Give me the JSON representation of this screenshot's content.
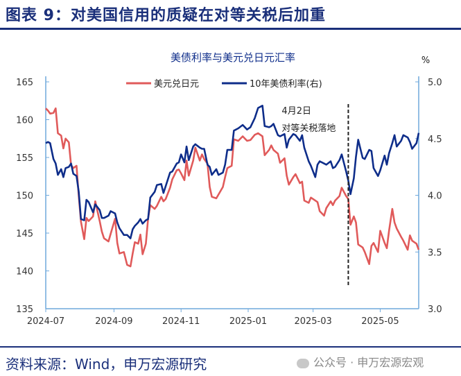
{
  "figure_title": "图表 9：对美国信用的质疑在对等关税后加重",
  "source": "资料来源：Wind，申万宏源研究",
  "watermark": "公众号 · 申万宏源宏观",
  "chart_data": {
    "type": "line",
    "title": "美债利率与美元兑日元汇率",
    "right_unit": "%",
    "x_ticks": [
      "2024-07",
      "2024-09",
      "2024-11",
      "2025-01",
      "2025-03",
      "2025-05"
    ],
    "x_range": [
      "2024-07-01",
      "2025-06-05"
    ],
    "y_left": {
      "min": 135,
      "max": 165,
      "ticks": [
        135,
        140,
        145,
        150,
        155,
        160,
        165
      ]
    },
    "y_right": {
      "min": 3.0,
      "max": 5.0,
      "ticks": [
        "3.0",
        "3.5",
        "4.0",
        "4.5",
        "5.0"
      ]
    },
    "annotation": {
      "date": "2025-04-02",
      "line1": "4月2日",
      "line2": "对等关税落地"
    },
    "legend": "top",
    "colors": {
      "usdjpy": "#e05a5a",
      "ust10y": "#0e2d8a",
      "axis": "#6fa8dc",
      "annotation": "#222222"
    },
    "series": [
      {
        "name": "美元兑日元",
        "axis": "left",
        "color": "#e05a5a",
        "points": [
          [
            "2024-07-01",
            161.5
          ],
          [
            "2024-07-03",
            161.2
          ],
          [
            "2024-07-05",
            160.8
          ],
          [
            "2024-07-08",
            160.9
          ],
          [
            "2024-07-10",
            161.5
          ],
          [
            "2024-07-12",
            158.2
          ],
          [
            "2024-07-15",
            157.9
          ],
          [
            "2024-07-17",
            156.2
          ],
          [
            "2024-07-19",
            157.5
          ],
          [
            "2024-07-22",
            157.0
          ],
          [
            "2024-07-24",
            154.0
          ],
          [
            "2024-07-26",
            153.6
          ],
          [
            "2024-07-29",
            153.9
          ],
          [
            "2024-07-31",
            149.9
          ],
          [
            "2024-08-02",
            146.5
          ],
          [
            "2024-08-05",
            144.2
          ],
          [
            "2024-08-07",
            147.0
          ],
          [
            "2024-08-09",
            146.6
          ],
          [
            "2024-08-13",
            147.2
          ],
          [
            "2024-08-15",
            149.2
          ],
          [
            "2024-08-19",
            146.6
          ],
          [
            "2024-08-21",
            145.2
          ],
          [
            "2024-08-23",
            144.3
          ],
          [
            "2024-08-27",
            143.9
          ],
          [
            "2024-08-29",
            144.9
          ],
          [
            "2024-09-02",
            146.9
          ],
          [
            "2024-09-04",
            143.7
          ],
          [
            "2024-09-06",
            142.3
          ],
          [
            "2024-09-10",
            142.5
          ],
          [
            "2024-09-13",
            140.8
          ],
          [
            "2024-09-16",
            140.6
          ],
          [
            "2024-09-18",
            142.3
          ],
          [
            "2024-09-20",
            143.8
          ],
          [
            "2024-09-23",
            143.6
          ],
          [
            "2024-09-25",
            144.8
          ],
          [
            "2024-09-27",
            142.2
          ],
          [
            "2024-09-30",
            143.6
          ],
          [
            "2024-10-02",
            146.9
          ],
          [
            "2024-10-04",
            148.7
          ],
          [
            "2024-10-08",
            148.2
          ],
          [
            "2024-10-10",
            148.6
          ],
          [
            "2024-10-14",
            149.8
          ],
          [
            "2024-10-16",
            149.2
          ],
          [
            "2024-10-18",
            149.5
          ],
          [
            "2024-10-22",
            151.0
          ],
          [
            "2024-10-24",
            152.1
          ],
          [
            "2024-10-28",
            153.3
          ],
          [
            "2024-10-30",
            153.4
          ],
          [
            "2024-11-01",
            152.9
          ],
          [
            "2024-11-04",
            152.0
          ],
          [
            "2024-11-06",
            154.6
          ],
          [
            "2024-11-08",
            152.6
          ],
          [
            "2024-11-12",
            154.6
          ],
          [
            "2024-11-14",
            156.3
          ],
          [
            "2024-11-18",
            154.6
          ],
          [
            "2024-11-20",
            155.4
          ],
          [
            "2024-11-22",
            154.8
          ],
          [
            "2024-11-25",
            154.2
          ],
          [
            "2024-11-27",
            151.1
          ],
          [
            "2024-11-29",
            149.8
          ],
          [
            "2024-12-03",
            149.6
          ],
          [
            "2024-12-05",
            150.1
          ],
          [
            "2024-12-09",
            151.1
          ],
          [
            "2024-12-11",
            152.4
          ],
          [
            "2024-12-13",
            153.6
          ],
          [
            "2024-12-17",
            153.9
          ],
          [
            "2024-12-19",
            157.4
          ],
          [
            "2024-12-23",
            157.2
          ],
          [
            "2024-12-27",
            157.8
          ],
          [
            "2024-12-31",
            157.2
          ],
          [
            "2025-01-03",
            157.3
          ],
          [
            "2025-01-07",
            158.0
          ],
          [
            "2025-01-10",
            158.2
          ],
          [
            "2025-01-14",
            157.8
          ],
          [
            "2025-01-16",
            155.3
          ],
          [
            "2025-01-20",
            156.0
          ],
          [
            "2025-01-22",
            156.6
          ],
          [
            "2025-01-24",
            156.0
          ],
          [
            "2025-01-28",
            155.5
          ],
          [
            "2025-01-30",
            154.3
          ],
          [
            "2025-02-03",
            154.9
          ],
          [
            "2025-02-05",
            152.6
          ],
          [
            "2025-02-07",
            151.4
          ],
          [
            "2025-02-11",
            152.4
          ],
          [
            "2025-02-13",
            152.8
          ],
          [
            "2025-02-17",
            151.6
          ],
          [
            "2025-02-19",
            151.8
          ],
          [
            "2025-02-21",
            149.3
          ],
          [
            "2025-02-25",
            149.0
          ],
          [
            "2025-02-27",
            149.7
          ],
          [
            "2025-03-03",
            149.3
          ],
          [
            "2025-03-05",
            149.1
          ],
          [
            "2025-03-07",
            147.9
          ],
          [
            "2025-03-11",
            147.3
          ],
          [
            "2025-03-13",
            148.3
          ],
          [
            "2025-03-17",
            149.2
          ],
          [
            "2025-03-19",
            148.7
          ],
          [
            "2025-03-21",
            149.3
          ],
          [
            "2025-03-25",
            149.9
          ],
          [
            "2025-03-27",
            151.0
          ],
          [
            "2025-03-31",
            149.9
          ],
          [
            "2025-04-02",
            149.5
          ],
          [
            "2025-04-04",
            146.1
          ],
          [
            "2025-04-07",
            147.2
          ],
          [
            "2025-04-09",
            146.4
          ],
          [
            "2025-04-11",
            143.5
          ],
          [
            "2025-04-15",
            143.1
          ],
          [
            "2025-04-17",
            142.5
          ],
          [
            "2025-04-21",
            140.9
          ],
          [
            "2025-04-23",
            143.3
          ],
          [
            "2025-04-25",
            143.7
          ],
          [
            "2025-04-29",
            142.5
          ],
          [
            "2025-05-01",
            145.3
          ],
          [
            "2025-05-05",
            143.7
          ],
          [
            "2025-05-07",
            143.0
          ],
          [
            "2025-05-09",
            145.3
          ],
          [
            "2025-05-12",
            148.2
          ],
          [
            "2025-05-14",
            146.4
          ],
          [
            "2025-05-16",
            145.6
          ],
          [
            "2025-05-20",
            144.5
          ],
          [
            "2025-05-22",
            144.0
          ],
          [
            "2025-05-26",
            142.8
          ],
          [
            "2025-05-28",
            144.7
          ],
          [
            "2025-05-30",
            144.0
          ],
          [
            "2025-06-03",
            143.6
          ],
          [
            "2025-06-05",
            142.8
          ]
        ]
      },
      {
        "name": "10年美债利率(右)",
        "axis": "right",
        "color": "#0e2d8a",
        "points": [
          [
            "2024-07-01",
            4.46
          ],
          [
            "2024-07-03",
            4.47
          ],
          [
            "2024-07-05",
            4.46
          ],
          [
            "2024-07-08",
            4.32
          ],
          [
            "2024-07-10",
            4.28
          ],
          [
            "2024-07-12",
            4.18
          ],
          [
            "2024-07-15",
            4.23
          ],
          [
            "2024-07-17",
            4.16
          ],
          [
            "2024-07-19",
            4.24
          ],
          [
            "2024-07-22",
            4.25
          ],
          [
            "2024-07-24",
            4.28
          ],
          [
            "2024-07-26",
            4.19
          ],
          [
            "2024-07-29",
            4.17
          ],
          [
            "2024-07-31",
            4.03
          ],
          [
            "2024-08-02",
            3.79
          ],
          [
            "2024-08-05",
            3.78
          ],
          [
            "2024-08-07",
            3.96
          ],
          [
            "2024-08-09",
            3.94
          ],
          [
            "2024-08-13",
            3.85
          ],
          [
            "2024-08-15",
            3.92
          ],
          [
            "2024-08-19",
            3.87
          ],
          [
            "2024-08-21",
            3.8
          ],
          [
            "2024-08-23",
            3.8
          ],
          [
            "2024-08-27",
            3.82
          ],
          [
            "2024-08-29",
            3.86
          ],
          [
            "2024-09-02",
            3.84
          ],
          [
            "2024-09-04",
            3.76
          ],
          [
            "2024-09-06",
            3.71
          ],
          [
            "2024-09-10",
            3.65
          ],
          [
            "2024-09-13",
            3.65
          ],
          [
            "2024-09-16",
            3.62
          ],
          [
            "2024-09-18",
            3.7
          ],
          [
            "2024-09-20",
            3.73
          ],
          [
            "2024-09-23",
            3.76
          ],
          [
            "2024-09-25",
            3.79
          ],
          [
            "2024-09-27",
            3.75
          ],
          [
            "2024-09-30",
            3.78
          ],
          [
            "2024-10-02",
            3.79
          ],
          [
            "2024-10-04",
            3.98
          ],
          [
            "2024-10-08",
            4.03
          ],
          [
            "2024-10-10",
            4.09
          ],
          [
            "2024-10-14",
            4.1
          ],
          [
            "2024-10-16",
            4.02
          ],
          [
            "2024-10-18",
            4.08
          ],
          [
            "2024-10-22",
            4.2
          ],
          [
            "2024-10-24",
            4.21
          ],
          [
            "2024-10-28",
            4.28
          ],
          [
            "2024-10-30",
            4.29
          ],
          [
            "2024-11-01",
            4.36
          ],
          [
            "2024-11-04",
            4.29
          ],
          [
            "2024-11-06",
            4.43
          ],
          [
            "2024-11-08",
            4.31
          ],
          [
            "2024-11-12",
            4.43
          ],
          [
            "2024-11-14",
            4.45
          ],
          [
            "2024-11-18",
            4.42
          ],
          [
            "2024-11-20",
            4.41
          ],
          [
            "2024-11-22",
            4.41
          ],
          [
            "2024-11-25",
            4.27
          ],
          [
            "2024-11-27",
            4.25
          ],
          [
            "2024-11-29",
            4.18
          ],
          [
            "2024-12-03",
            4.23
          ],
          [
            "2024-12-05",
            4.18
          ],
          [
            "2024-12-09",
            4.2
          ],
          [
            "2024-12-11",
            4.27
          ],
          [
            "2024-12-13",
            4.4
          ],
          [
            "2024-12-17",
            4.4
          ],
          [
            "2024-12-19",
            4.57
          ],
          [
            "2024-12-23",
            4.59
          ],
          [
            "2024-12-27",
            4.62
          ],
          [
            "2024-12-31",
            4.58
          ],
          [
            "2025-01-03",
            4.6
          ],
          [
            "2025-01-07",
            4.68
          ],
          [
            "2025-01-10",
            4.77
          ],
          [
            "2025-01-14",
            4.79
          ],
          [
            "2025-01-16",
            4.61
          ],
          [
            "2025-01-20",
            4.6
          ],
          [
            "2025-01-22",
            4.61
          ],
          [
            "2025-01-24",
            4.63
          ],
          [
            "2025-01-28",
            4.53
          ],
          [
            "2025-01-30",
            4.52
          ],
          [
            "2025-02-03",
            4.54
          ],
          [
            "2025-02-05",
            4.42
          ],
          [
            "2025-02-07",
            4.49
          ],
          [
            "2025-02-11",
            4.54
          ],
          [
            "2025-02-13",
            4.53
          ],
          [
            "2025-02-17",
            4.48
          ],
          [
            "2025-02-19",
            4.53
          ],
          [
            "2025-02-21",
            4.42
          ],
          [
            "2025-02-25",
            4.3
          ],
          [
            "2025-02-27",
            4.26
          ],
          [
            "2025-03-03",
            4.16
          ],
          [
            "2025-03-05",
            4.27
          ],
          [
            "2025-03-07",
            4.3
          ],
          [
            "2025-03-11",
            4.28
          ],
          [
            "2025-03-13",
            4.27
          ],
          [
            "2025-03-17",
            4.3
          ],
          [
            "2025-03-19",
            4.24
          ],
          [
            "2025-03-21",
            4.25
          ],
          [
            "2025-03-25",
            4.31
          ],
          [
            "2025-03-27",
            4.36
          ],
          [
            "2025-03-31",
            4.21
          ],
          [
            "2025-04-02",
            4.13
          ],
          [
            "2025-04-04",
            4.01
          ],
          [
            "2025-04-07",
            4.15
          ],
          [
            "2025-04-09",
            4.34
          ],
          [
            "2025-04-11",
            4.49
          ],
          [
            "2025-04-15",
            4.33
          ],
          [
            "2025-04-17",
            4.32
          ],
          [
            "2025-04-21",
            4.4
          ],
          [
            "2025-04-23",
            4.39
          ],
          [
            "2025-04-25",
            4.24
          ],
          [
            "2025-04-29",
            4.17
          ],
          [
            "2025-05-01",
            4.22
          ],
          [
            "2025-05-05",
            4.35
          ],
          [
            "2025-05-07",
            4.27
          ],
          [
            "2025-05-09",
            4.37
          ],
          [
            "2025-05-12",
            4.46
          ],
          [
            "2025-05-14",
            4.53
          ],
          [
            "2025-05-16",
            4.43
          ],
          [
            "2025-05-20",
            4.48
          ],
          [
            "2025-05-22",
            4.53
          ],
          [
            "2025-05-26",
            4.51
          ],
          [
            "2025-05-28",
            4.47
          ],
          [
            "2025-05-30",
            4.41
          ],
          [
            "2025-06-03",
            4.46
          ],
          [
            "2025-06-05",
            4.55
          ]
        ]
      }
    ]
  }
}
